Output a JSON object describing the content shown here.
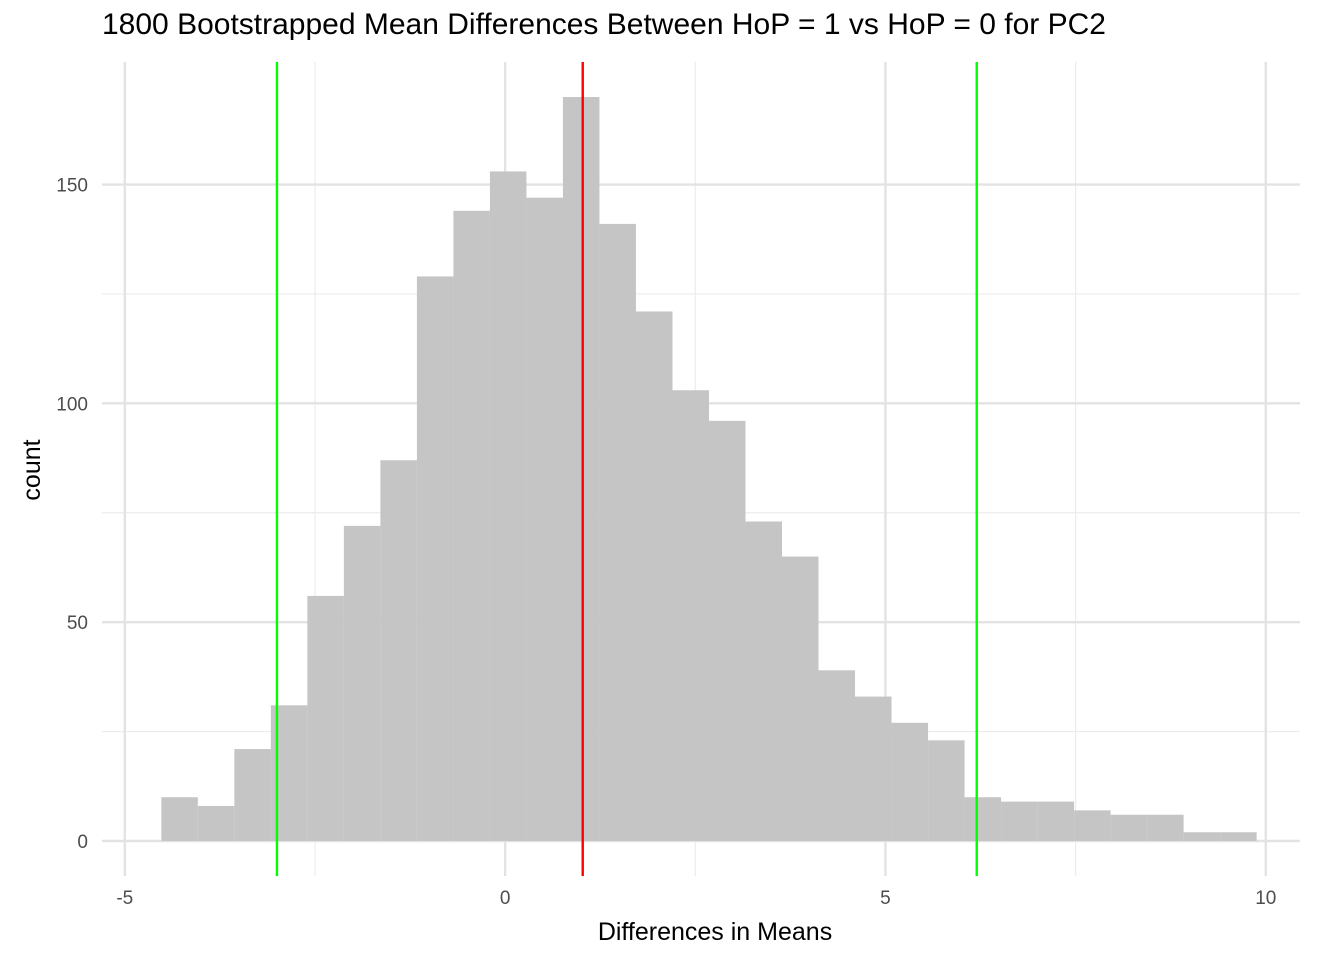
{
  "chart_data": {
    "type": "bar",
    "title": "1800 Bootstrapped Mean Differences Between HoP = 1 vs HoP = 0 for PC2",
    "xlabel": "Differences in Means",
    "ylabel": "count",
    "xlim": [
      -5.3,
      10.45
    ],
    "ylim": [
      -8,
      178
    ],
    "x_ticks": [
      -5,
      0,
      5,
      10
    ],
    "x_tick_labels": [
      "-5",
      "0",
      "5",
      "10"
    ],
    "y_ticks": [
      0,
      50,
      100,
      150
    ],
    "y_tick_labels": [
      "0",
      "50",
      "100",
      "150"
    ],
    "x_minor_ticks": [
      -2.5,
      2.5,
      7.5
    ],
    "y_minor_ticks": [
      25,
      75,
      125
    ],
    "grid": true,
    "bins": [
      {
        "x0": -4.52,
        "x1": -4.04,
        "count": 10
      },
      {
        "x0": -4.04,
        "x1": -3.56,
        "count": 8
      },
      {
        "x0": -3.56,
        "x1": -3.08,
        "count": 21
      },
      {
        "x0": -3.08,
        "x1": -2.6,
        "count": 31
      },
      {
        "x0": -2.6,
        "x1": -2.12,
        "count": 56
      },
      {
        "x0": -2.12,
        "x1": -1.64,
        "count": 72
      },
      {
        "x0": -1.64,
        "x1": -1.16,
        "count": 87
      },
      {
        "x0": -1.16,
        "x1": -0.68,
        "count": 129
      },
      {
        "x0": -0.68,
        "x1": -0.2,
        "count": 144
      },
      {
        "x0": -0.2,
        "x1": 0.28,
        "count": 153
      },
      {
        "x0": 0.28,
        "x1": 0.76,
        "count": 147
      },
      {
        "x0": 0.76,
        "x1": 1.24,
        "count": 170
      },
      {
        "x0": 1.24,
        "x1": 1.72,
        "count": 141
      },
      {
        "x0": 1.72,
        "x1": 2.2,
        "count": 121
      },
      {
        "x0": 2.2,
        "x1": 2.68,
        "count": 103
      },
      {
        "x0": 2.68,
        "x1": 3.16,
        "count": 96
      },
      {
        "x0": 3.16,
        "x1": 3.64,
        "count": 73
      },
      {
        "x0": 3.64,
        "x1": 4.12,
        "count": 65
      },
      {
        "x0": 4.12,
        "x1": 4.6,
        "count": 39
      },
      {
        "x0": 4.6,
        "x1": 5.08,
        "count": 33
      },
      {
        "x0": 5.08,
        "x1": 5.56,
        "count": 27
      },
      {
        "x0": 5.56,
        "x1": 6.04,
        "count": 23
      },
      {
        "x0": 6.04,
        "x1": 6.52,
        "count": 10
      },
      {
        "x0": 6.52,
        "x1": 7.0,
        "count": 9
      },
      {
        "x0": 7.0,
        "x1": 7.48,
        "count": 9
      },
      {
        "x0": 7.48,
        "x1": 7.96,
        "count": 7
      },
      {
        "x0": 7.96,
        "x1": 8.44,
        "count": 6
      },
      {
        "x0": 8.44,
        "x1": 8.92,
        "count": 6
      },
      {
        "x0": 8.92,
        "x1": 9.4,
        "count": 2
      },
      {
        "x0": 9.4,
        "x1": 9.88,
        "count": 2
      }
    ],
    "bar_color": "#c4c4c4",
    "reference_lines": [
      {
        "x": 1.02,
        "color": "#ff0000"
      },
      {
        "x": -3.0,
        "color": "#00ff00"
      },
      {
        "x": 6.2,
        "color": "#00ff00"
      }
    ]
  }
}
